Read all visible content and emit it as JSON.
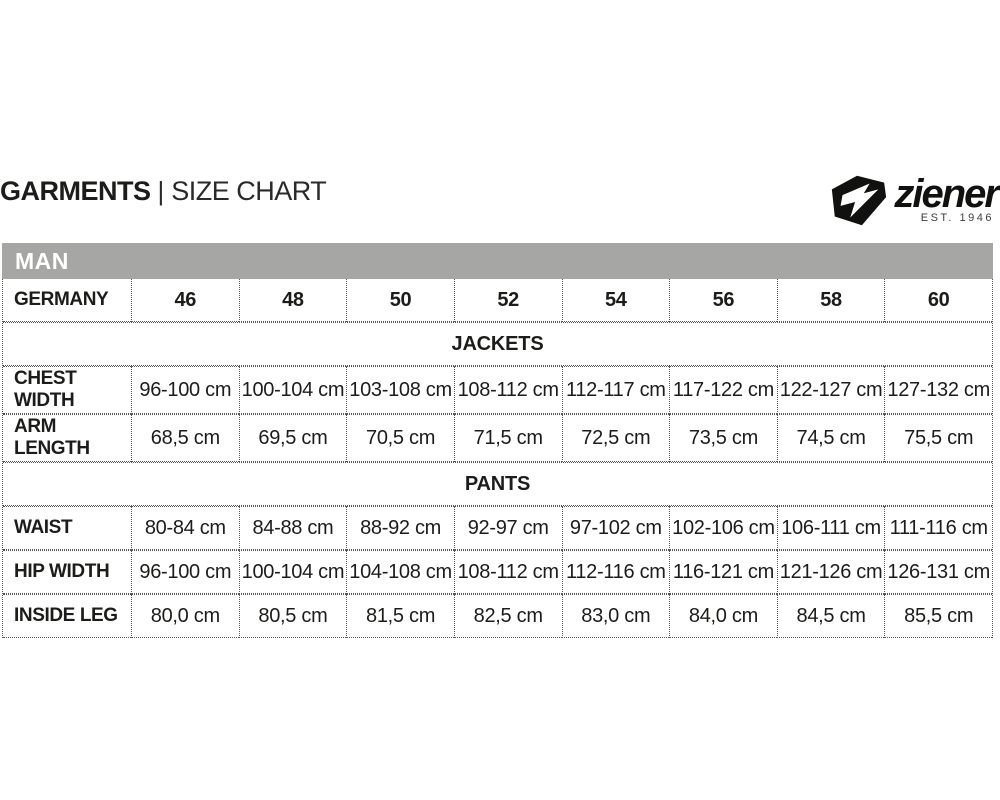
{
  "page": {
    "title_bold": "GARMENTS",
    "title_separator": "|",
    "title_regular": "SIZE CHART"
  },
  "brand": {
    "wordmark": "ziener",
    "established": "EST. 1946",
    "logo_color": "#111110"
  },
  "colors": {
    "band_gray": "#a6a6a4",
    "border_dots": "#565656",
    "text": "#1c1c1a"
  },
  "table": {
    "band_title": "MAN",
    "size_row": {
      "label": "GERMANY",
      "sizes": [
        "46",
        "48",
        "50",
        "52",
        "54",
        "56",
        "58",
        "60"
      ]
    },
    "sections": [
      {
        "title": "JACKETS",
        "rows": [
          {
            "label": "CHEST WIDTH",
            "values": [
              "96-100 cm",
              "100-104 cm",
              "103-108 cm",
              "108-112 cm",
              "112-117 cm",
              "117-122 cm",
              "122-127 cm",
              "127-132 cm"
            ]
          },
          {
            "label": "ARM LENGTH",
            "values": [
              "68,5 cm",
              "69,5 cm",
              "70,5 cm",
              "71,5 cm",
              "72,5 cm",
              "73,5 cm",
              "74,5 cm",
              "75,5 cm"
            ]
          }
        ]
      },
      {
        "title": "PANTS",
        "rows": [
          {
            "label": "WAIST",
            "values": [
              "80-84 cm",
              "84-88 cm",
              "88-92 cm",
              "92-97 cm",
              "97-102 cm",
              "102-106 cm",
              "106-111 cm",
              "111-116 cm"
            ]
          },
          {
            "label": "HIP WIDTH",
            "values": [
              "96-100 cm",
              "100-104 cm",
              "104-108 cm",
              "108-112 cm",
              "112-116 cm",
              "116-121 cm",
              "121-126 cm",
              "126-131 cm"
            ]
          },
          {
            "label": "INSIDE LEG",
            "values": [
              "80,0 cm",
              "80,5 cm",
              "81,5 cm",
              "82,5 cm",
              "83,0 cm",
              "84,0 cm",
              "84,5 cm",
              "85,5 cm"
            ]
          }
        ]
      }
    ]
  }
}
